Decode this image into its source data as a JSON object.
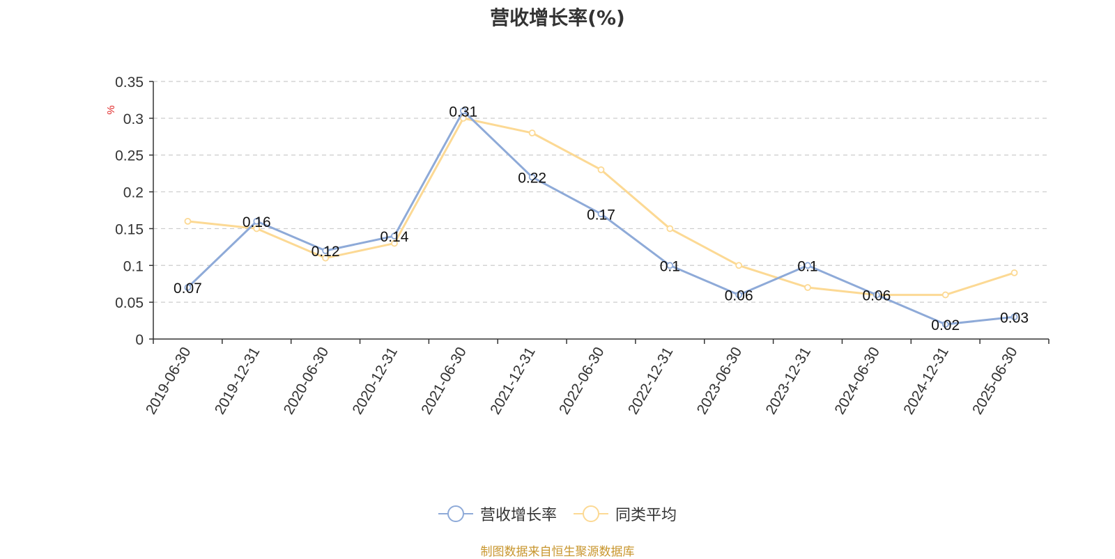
{
  "chart_data": {
    "type": "line",
    "title": "营收增长率(%)",
    "ylabel": "%",
    "categories": [
      "2019-06-30",
      "2019-12-31",
      "2020-06-30",
      "2020-12-31",
      "2021-06-30",
      "2021-12-31",
      "2022-06-30",
      "2022-12-31",
      "2023-06-30",
      "2023-12-31",
      "2024-06-30",
      "2024-12-31",
      "2025-06-30"
    ],
    "ylim": [
      0,
      0.35
    ],
    "yticks": [
      "0",
      "0.05",
      "0.1",
      "0.15",
      "0.2",
      "0.25",
      "0.3",
      "0.35"
    ],
    "grid": true,
    "legend_position": "bottom",
    "series": [
      {
        "name": "营收增长率",
        "color": "#8eaad8",
        "labels": true,
        "values": [
          0.07,
          0.16,
          0.12,
          0.14,
          0.31,
          0.22,
          0.17,
          0.1,
          0.06,
          0.1,
          0.06,
          0.02,
          0.03
        ]
      },
      {
        "name": "同类平均",
        "color": "#fcd994",
        "labels": false,
        "values": [
          0.16,
          0.15,
          0.11,
          0.13,
          0.3,
          0.28,
          0.23,
          0.15,
          0.1,
          0.07,
          0.06,
          0.06,
          0.09
        ]
      }
    ],
    "source": "制图数据来自恒生聚源数据库"
  }
}
